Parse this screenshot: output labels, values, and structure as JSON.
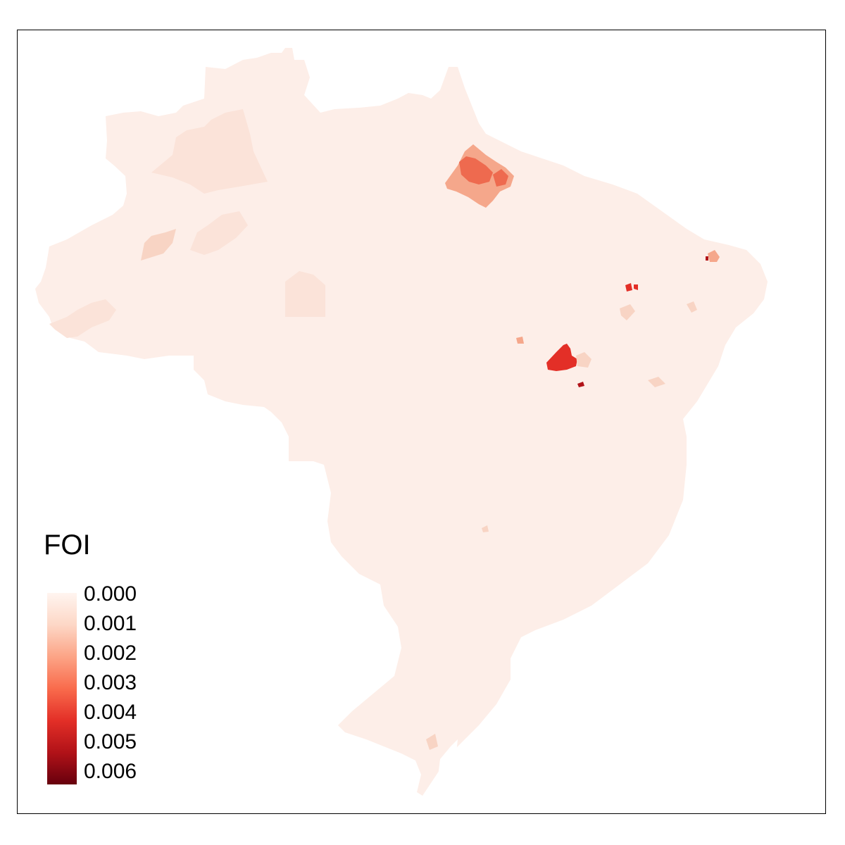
{
  "map": {
    "legend": {
      "title": "FOI",
      "labels": [
        "0.000",
        "0.001",
        "0.002",
        "0.003",
        "0.004",
        "0.005",
        "0.006"
      ],
      "colors": [
        "#fff5f0",
        "#fdd7c6",
        "#fca486",
        "#f96b4c",
        "#e32f27",
        "#b11218",
        "#67000d"
      ]
    },
    "colors": {
      "base": "#fdeee8",
      "low": "#fbe3d9",
      "mid_low": "#f8d4c4",
      "mid": "#f5a78b",
      "high": "#ee6a4f",
      "very_high": "#e32f27",
      "max": "#b11218",
      "border": "#000000"
    }
  }
}
